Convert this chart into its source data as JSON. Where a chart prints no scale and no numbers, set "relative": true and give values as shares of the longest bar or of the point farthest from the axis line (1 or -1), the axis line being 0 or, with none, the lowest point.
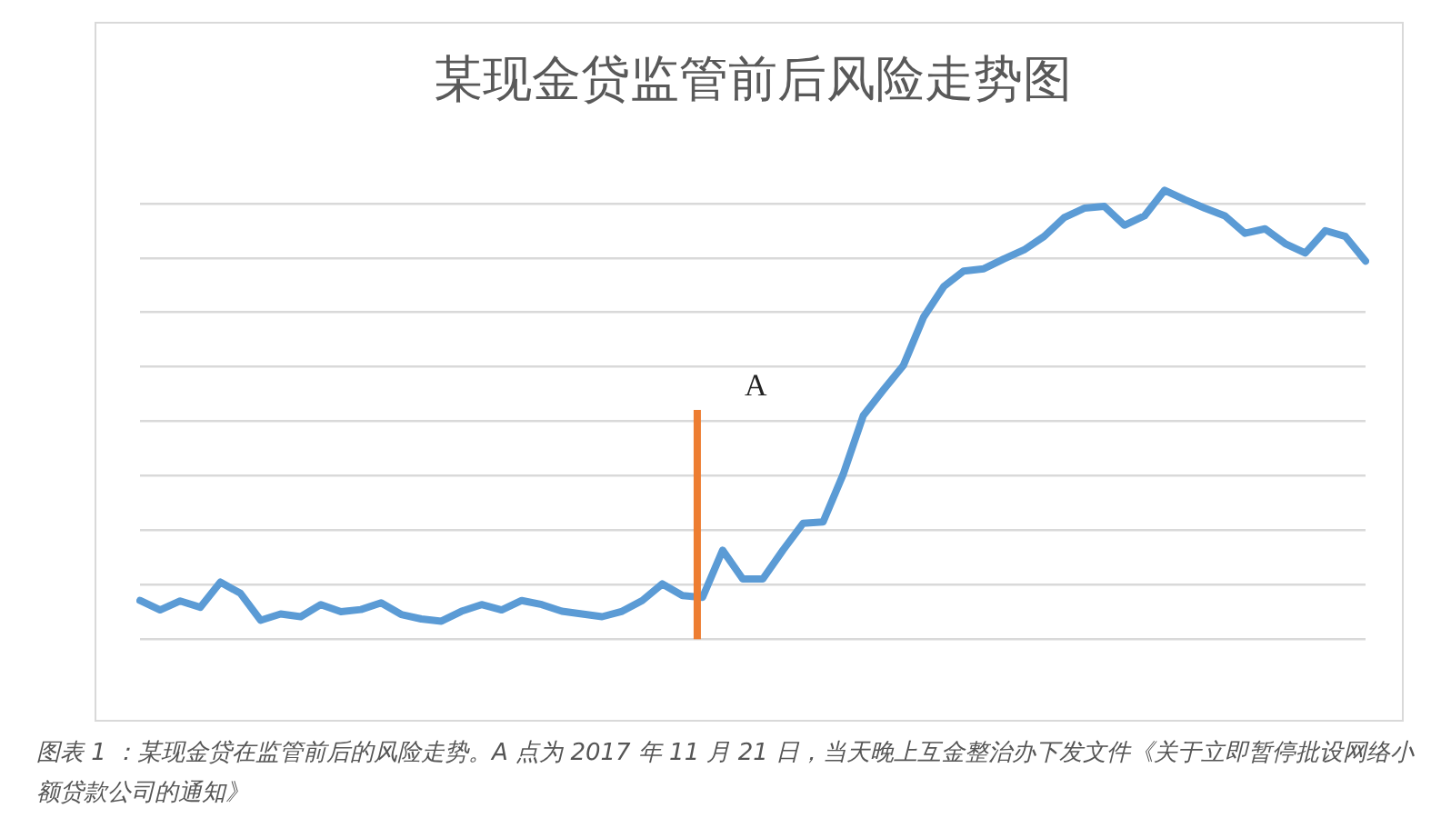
{
  "chart_data": {
    "type": "line",
    "title": "某现金贷监管前后风险走势图",
    "relative": true,
    "grid": "y",
    "marker": "none",
    "line_style": "solid",
    "categories": [
      null,
      null,
      null,
      null,
      null,
      null,
      null,
      null,
      null,
      null,
      null,
      null,
      null,
      null,
      null,
      null,
      null,
      null,
      null,
      null,
      null,
      null,
      null,
      null,
      null,
      null,
      null,
      null,
      null,
      null,
      null,
      null,
      null,
      null,
      null,
      null,
      null,
      null,
      null,
      null,
      null,
      null,
      null,
      null,
      null,
      null,
      null,
      null,
      null,
      null,
      null,
      null,
      null,
      null,
      null,
      null,
      null,
      null,
      null,
      null,
      null,
      null
    ],
    "series": [
      {
        "color": "#5b9bd5",
        "values": [
          0.086,
          0.065,
          0.085,
          0.071,
          0.127,
          0.102,
          0.042,
          0.056,
          0.05,
          0.077,
          0.061,
          0.066,
          0.081,
          0.055,
          0.045,
          0.04,
          0.062,
          0.077,
          0.065,
          0.086,
          0.077,
          0.062,
          0.056,
          0.05,
          0.062,
          0.086,
          0.123,
          0.097,
          0.093,
          0.198,
          0.134,
          0.134,
          0.198,
          0.258,
          0.261,
          0.367,
          0.498,
          0.555,
          0.61,
          0.717,
          0.785,
          0.82,
          0.825,
          0.847,
          0.867,
          0.897,
          0.939,
          0.96,
          0.964,
          0.922,
          0.943,
          1,
          0.979,
          0.96,
          0.943,
          0.904,
          0.914,
          0.881,
          0.86,
          0.91,
          0.897,
          0.842
        ]
      }
    ],
    "annotations": [
      "A",
      "图表 1 ：某现金贷在监管前后的风险走势。A 点为 2017 年 11 月 21 日，当天晚上互金整治办下发文件《关于立即暂停批设网络小额贷款公司的通知》"
    ]
  }
}
